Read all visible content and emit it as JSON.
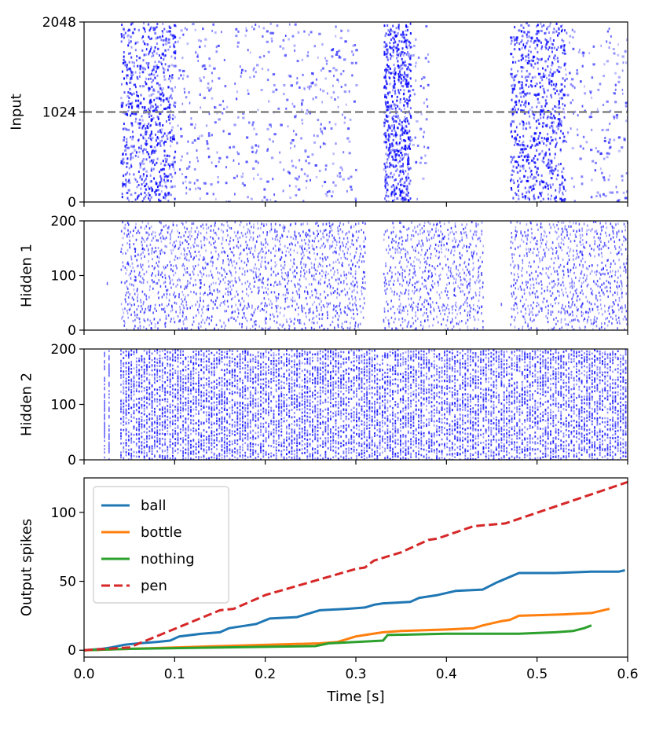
{
  "chart_data": [
    {
      "type": "scatter",
      "subtype": "raster",
      "ylabel": "Input",
      "xlim": [
        0,
        0.6
      ],
      "ylim": [
        0,
        2048
      ],
      "yticks": [
        0,
        1024,
        2048
      ],
      "ytick_labels": [
        "0",
        "1024",
        "2048"
      ],
      "color": "#0000ff",
      "reference_line": {
        "y": 1024,
        "style": "dashed",
        "color": "#808080"
      },
      "active_windows": [
        [
          0.04,
          0.3
        ],
        [
          0.33,
          0.38
        ],
        [
          0.47,
          0.6
        ]
      ],
      "dense_bursts": [
        [
          0.04,
          0.1
        ],
        [
          0.33,
          0.36
        ],
        [
          0.47,
          0.53
        ]
      ]
    },
    {
      "type": "scatter",
      "subtype": "raster",
      "ylabel": "Hidden 1",
      "xlim": [
        0,
        0.6
      ],
      "ylim": [
        0,
        200
      ],
      "yticks": [
        0,
        100,
        200
      ],
      "ytick_labels": [
        "0",
        "100",
        "200"
      ],
      "color": "#0000ff",
      "active_windows": [
        [
          0.04,
          0.31
        ],
        [
          0.33,
          0.44
        ],
        [
          0.47,
          0.6
        ]
      ],
      "isolated_spikes": [
        [
          0.025,
          88
        ],
        [
          0.46,
          50
        ]
      ]
    },
    {
      "type": "scatter",
      "subtype": "raster",
      "ylabel": "Hidden 2",
      "xlim": [
        0,
        0.6
      ],
      "ylim": [
        0,
        200
      ],
      "yticks": [
        0,
        100,
        200
      ],
      "ytick_labels": [
        "0",
        "100",
        "200"
      ],
      "color": "#0000ff",
      "active_windows": [
        [
          0.04,
          0.6
        ]
      ],
      "isolated_columns": [
        0.022,
        0.027
      ]
    },
    {
      "type": "line",
      "ylabel": "Output spikes",
      "xlabel": "Time [s]",
      "xlim": [
        0,
        0.6
      ],
      "ylim": [
        -5,
        125
      ],
      "xticks": [
        0.0,
        0.1,
        0.2,
        0.3,
        0.4,
        0.5,
        0.6
      ],
      "xtick_labels": [
        "0.0",
        "0.1",
        "0.2",
        "0.3",
        "0.4",
        "0.5",
        "0.6"
      ],
      "yticks": [
        0,
        50,
        100
      ],
      "ytick_labels": [
        "0",
        "50",
        "100"
      ],
      "legend_position": "top-left",
      "series": [
        {
          "name": "ball",
          "color": "#1f77b4",
          "style": "solid",
          "points": [
            [
              0,
              0
            ],
            [
              0.02,
              1
            ],
            [
              0.03,
              2
            ],
            [
              0.045,
              4
            ],
            [
              0.06,
              5
            ],
            [
              0.08,
              6
            ],
            [
              0.095,
              7
            ],
            [
              0.105,
              10
            ],
            [
              0.13,
              12
            ],
            [
              0.15,
              13
            ],
            [
              0.16,
              16
            ],
            [
              0.18,
              18
            ],
            [
              0.19,
              19
            ],
            [
              0.205,
              23
            ],
            [
              0.235,
              24
            ],
            [
              0.26,
              29
            ],
            [
              0.29,
              30
            ],
            [
              0.31,
              31
            ],
            [
              0.32,
              33
            ],
            [
              0.33,
              34
            ],
            [
              0.36,
              35
            ],
            [
              0.37,
              38
            ],
            [
              0.39,
              40
            ],
            [
              0.41,
              43
            ],
            [
              0.44,
              44
            ],
            [
              0.455,
              49
            ],
            [
              0.48,
              56
            ],
            [
              0.52,
              56
            ],
            [
              0.56,
              57
            ],
            [
              0.59,
              57
            ],
            [
              0.597,
              58
            ]
          ]
        },
        {
          "name": "bottle",
          "color": "#ff7f0e",
          "style": "solid",
          "points": [
            [
              0,
              0
            ],
            [
              0.05,
              1
            ],
            [
              0.15,
              3
            ],
            [
              0.26,
              5
            ],
            [
              0.28,
              6
            ],
            [
              0.3,
              10
            ],
            [
              0.31,
              11
            ],
            [
              0.33,
              13
            ],
            [
              0.35,
              14
            ],
            [
              0.4,
              15
            ],
            [
              0.43,
              16
            ],
            [
              0.44,
              18
            ],
            [
              0.46,
              21
            ],
            [
              0.47,
              22
            ],
            [
              0.48,
              25
            ],
            [
              0.53,
              26
            ],
            [
              0.56,
              27
            ],
            [
              0.58,
              30
            ]
          ]
        },
        {
          "name": "nothing",
          "color": "#2ca02c",
          "style": "solid",
          "points": [
            [
              0,
              0
            ],
            [
              0.05,
              1
            ],
            [
              0.15,
              2
            ],
            [
              0.255,
              3
            ],
            [
              0.27,
              5
            ],
            [
              0.3,
              6
            ],
            [
              0.33,
              7
            ],
            [
              0.335,
              11
            ],
            [
              0.4,
              12
            ],
            [
              0.48,
              12
            ],
            [
              0.52,
              13
            ],
            [
              0.54,
              14
            ],
            [
              0.552,
              16
            ],
            [
              0.56,
              18
            ]
          ]
        },
        {
          "name": "pen",
          "color": "#d62728",
          "style": "dashed",
          "points": [
            [
              0,
              0
            ],
            [
              0.05,
              2
            ],
            [
              0.15,
              29
            ],
            [
              0.165,
              30
            ],
            [
              0.2,
              40
            ],
            [
              0.3,
              59
            ],
            [
              0.31,
              60
            ],
            [
              0.32,
              65
            ],
            [
              0.35,
              71
            ],
            [
              0.38,
              80
            ],
            [
              0.39,
              81
            ],
            [
              0.43,
              90
            ],
            [
              0.465,
              92
            ],
            [
              0.6,
              122
            ]
          ]
        }
      ]
    }
  ]
}
